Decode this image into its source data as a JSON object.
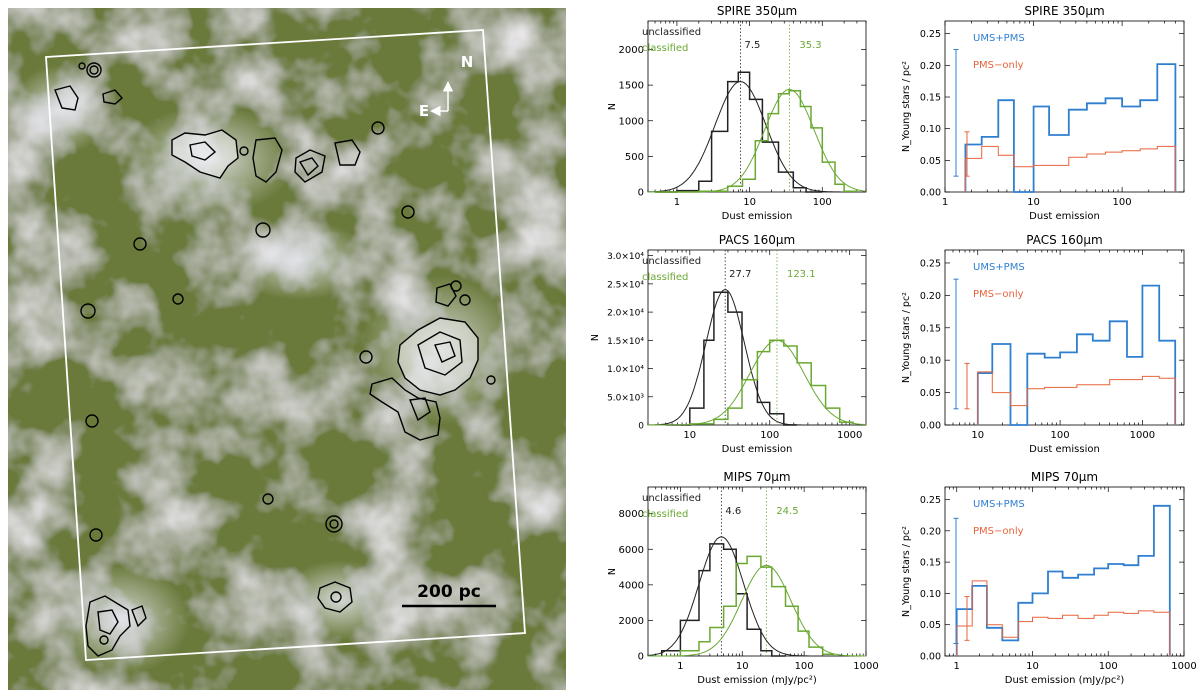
{
  "image_panel": {
    "compass_north": "N",
    "compass_east": "E",
    "scale_label": "200 pc"
  },
  "colors": {
    "unclassified": "#222222",
    "classified": "#6aa832",
    "ums_pms": "#2f7fd0",
    "pms_only": "#e8643c",
    "mosaic_base": "#6a7a3a",
    "overlay_box": "#ffffff",
    "contour": "#000000"
  },
  "chart_data": [
    {
      "type": "histogram",
      "xscale": "log",
      "title": "SPIRE 350μm",
      "xlabel": "Dust emission",
      "ylabel": "N",
      "xlim": [
        0.4,
        400
      ],
      "ylim": [
        0,
        2400
      ],
      "xticks": [
        1,
        10,
        100
      ],
      "xtick_labels": [
        "1",
        "10",
        "100"
      ],
      "yticks": [
        0,
        500,
        1000,
        1500,
        2000
      ],
      "ytick_labels": [
        "0",
        "500",
        "1000",
        "1500",
        "2000"
      ],
      "legend": [
        "unclassified",
        "classified"
      ],
      "series": [
        {
          "name": "unclassified",
          "median": 7.5,
          "median_label": "7.5",
          "edges": [
            0.5,
            1,
            2,
            3,
            5,
            7,
            10,
            15,
            25,
            40,
            60,
            100
          ],
          "values": [
            0,
            20,
            150,
            850,
            1550,
            1680,
            1300,
            700,
            280,
            60,
            0
          ],
          "fit": {
            "mu": 7.5,
            "sigma_dex": 0.35,
            "amp": 1550
          }
        },
        {
          "name": "classified",
          "median": 35.3,
          "median_label": "35.3",
          "edges": [
            0.5,
            2,
            5,
            8,
            12,
            18,
            25,
            35,
            50,
            70,
            100,
            150,
            200,
            300
          ],
          "values": [
            0,
            10,
            80,
            180,
            720,
            1100,
            1380,
            1420,
            1200,
            900,
            420,
            110,
            10
          ],
          "fit": {
            "mu": 35.3,
            "sigma_dex": 0.34,
            "amp": 1440
          }
        }
      ]
    },
    {
      "type": "histogram",
      "xscale": "log",
      "title": "PACS 160μm",
      "xlabel": "Dust emission",
      "ylabel": "N",
      "xlim": [
        3,
        1600
      ],
      "ylim": [
        0,
        31000
      ],
      "xticks": [
        10,
        100,
        1000
      ],
      "xtick_labels": [
        "10",
        "100",
        "1000"
      ],
      "yticks": [
        0,
        5000,
        10000,
        15000,
        20000,
        25000,
        30000
      ],
      "ytick_labels": [
        "0",
        "5.0×10³",
        "1.0×10⁴",
        "1.5×10⁴",
        "2.0×10⁴",
        "2.5×10⁴",
        "3.0×10⁴"
      ],
      "legend": [
        "unclassified",
        "classified"
      ],
      "series": [
        {
          "name": "unclassified",
          "median": 27.7,
          "median_label": "27.7",
          "edges": [
            5,
            10,
            15,
            20,
            30,
            45,
            70,
            100,
            150,
            220
          ],
          "values": [
            0,
            3000,
            15000,
            23500,
            20000,
            8000,
            4000,
            2000,
            0
          ],
          "fit": {
            "mu": 27.7,
            "sigma_dex": 0.24,
            "amp": 24000
          }
        },
        {
          "name": "classified",
          "median": 123.1,
          "median_label": "123.1",
          "edges": [
            10,
            20,
            30,
            45,
            70,
            100,
            150,
            220,
            330,
            500,
            750,
            1100
          ],
          "values": [
            200,
            1000,
            3000,
            8000,
            13000,
            15000,
            14000,
            11000,
            7000,
            3000,
            500
          ],
          "fit": {
            "mu": 123.1,
            "sigma_dex": 0.34,
            "amp": 15000
          }
        }
      ]
    },
    {
      "type": "histogram",
      "xscale": "log",
      "title": "MIPS 70μm",
      "xlabel": "Dust emission (mJy/pc²)",
      "ylabel": "N",
      "xlim": [
        0.3,
        1000
      ],
      "ylim": [
        0,
        9500
      ],
      "xticks": [
        1,
        10,
        100,
        1000
      ],
      "xtick_labels": [
        "1",
        "10",
        "100",
        "1000"
      ],
      "yticks": [
        0,
        2000,
        4000,
        6000,
        8000
      ],
      "ytick_labels": [
        "0",
        "2000",
        "4000",
        "6000",
        "8000"
      ],
      "legend": [
        "unclassified",
        "classified"
      ],
      "series": [
        {
          "name": "unclassified",
          "median": 4.6,
          "median_label": "4.6",
          "edges": [
            0.5,
            1,
            2,
            3,
            5,
            8,
            12,
            20,
            30,
            50
          ],
          "values": [
            300,
            2000,
            4800,
            6300,
            6000,
            3500,
            1500,
            300,
            0
          ],
          "fit": {
            "mu": 4.6,
            "sigma_dex": 0.36,
            "amp": 6700
          }
        },
        {
          "name": "classified",
          "median": 24.5,
          "median_label": "24.5",
          "edges": [
            1,
            2,
            3,
            5,
            8,
            12,
            20,
            30,
            50,
            80,
            120,
            200,
            300
          ],
          "values": [
            300,
            800,
            1600,
            2800,
            5200,
            5600,
            5000,
            3900,
            2800,
            1400,
            500,
            100
          ],
          "fit": {
            "mu": 24.5,
            "sigma_dex": 0.4,
            "amp": 5100
          }
        }
      ]
    },
    {
      "type": "histogram",
      "xscale": "log",
      "title": "SPIRE 350μm",
      "xlabel": "Dust emission",
      "ylabel": "N_Young stars / pc²",
      "xlim": [
        1,
        500
      ],
      "ylim": [
        0,
        0.27
      ],
      "xticks": [
        1,
        10,
        100
      ],
      "xtick_labels": [
        "1",
        "10",
        "100"
      ],
      "yticks": [
        0,
        0.05,
        0.1,
        0.15,
        0.2,
        0.25
      ],
      "ytick_labels": [
        "0.00",
        "0.05",
        "0.10",
        "0.15",
        "0.20",
        "0.25"
      ],
      "legend": [
        "UMS+PMS",
        "PMS−only"
      ],
      "errorbars": [
        {
          "center": 0.125,
          "half": 0.1
        },
        {
          "center": 0.06,
          "half": 0.035
        }
      ],
      "series": [
        {
          "name": "UMS+PMS",
          "edges": [
            1.7,
            2.6,
            4,
            6,
            10,
            15,
            25,
            40,
            65,
            100,
            160,
            250,
            400
          ],
          "values": [
            0.075,
            0.087,
            0.145,
            0,
            0.135,
            0.09,
            0.13,
            0.14,
            0.148,
            0.135,
            0.145,
            0.202
          ]
        },
        {
          "name": "PMS−only",
          "edges": [
            1.7,
            2.6,
            4,
            6,
            10,
            15,
            25,
            40,
            65,
            100,
            160,
            250,
            400
          ],
          "values": [
            0.053,
            0.072,
            0.058,
            0.04,
            0.042,
            0.042,
            0.055,
            0.06,
            0.063,
            0.065,
            0.068,
            0.072
          ]
        }
      ]
    },
    {
      "type": "histogram",
      "xscale": "log",
      "title": "PACS 160μm",
      "xlabel": "Dust emission",
      "ylabel": "N_Young stars / pc²",
      "xlim": [
        4,
        3200
      ],
      "ylim": [
        0,
        0.27
      ],
      "xticks": [
        10,
        100,
        1000
      ],
      "xtick_labels": [
        "10",
        "100",
        "1000"
      ],
      "yticks": [
        0,
        0.05,
        0.1,
        0.15,
        0.2,
        0.25
      ],
      "ytick_labels": [
        "0.00",
        "0.05",
        "0.10",
        "0.15",
        "0.20",
        "0.25"
      ],
      "legend": [
        "UMS+PMS",
        "PMS−only"
      ],
      "errorbars": [
        {
          "center": 0.125,
          "half": 0.1
        },
        {
          "center": 0.06,
          "half": 0.035
        }
      ],
      "series": [
        {
          "name": "UMS+PMS",
          "edges": [
            10,
            15,
            25,
            40,
            65,
            100,
            160,
            250,
            400,
            650,
            1000,
            1600,
            2500
          ],
          "values": [
            0.08,
            0.125,
            0,
            0.11,
            0.104,
            0.112,
            0.14,
            0.13,
            0.16,
            0.105,
            0.215,
            0.13
          ]
        },
        {
          "name": "PMS−only",
          "edges": [
            10,
            15,
            25,
            40,
            65,
            100,
            160,
            250,
            400,
            650,
            1000,
            1600,
            2500
          ],
          "values": [
            0.082,
            0.05,
            0.03,
            0.056,
            0.058,
            0.058,
            0.062,
            0.062,
            0.07,
            0.07,
            0.075,
            0.072
          ]
        }
      ]
    },
    {
      "type": "histogram",
      "xscale": "log",
      "title": "MIPS 70μm",
      "xlabel": "Dust emission (mJy/pc²)",
      "ylabel": "N_Young stars / pc²",
      "xlim": [
        0.7,
        1000
      ],
      "ylim": [
        0,
        0.27
      ],
      "xticks": [
        1,
        10,
        100,
        1000
      ],
      "xtick_labels": [
        "1",
        "10",
        "100",
        "1000"
      ],
      "yticks": [
        0,
        0.05,
        0.1,
        0.15,
        0.2,
        0.25
      ],
      "ytick_labels": [
        "0.00",
        "0.05",
        "0.10",
        "0.15",
        "0.20",
        "0.25"
      ],
      "legend": [
        "UMS+PMS",
        "PMS−only"
      ],
      "errorbars": [
        {
          "center": 0.12,
          "half": 0.1
        },
        {
          "center": 0.06,
          "half": 0.035
        }
      ],
      "series": [
        {
          "name": "UMS+PMS",
          "edges": [
            1,
            1.6,
            2.5,
            4,
            6.5,
            10,
            16,
            25,
            40,
            65,
            100,
            160,
            250,
            400,
            650
          ],
          "values": [
            0.075,
            0.112,
            0.045,
            0.025,
            0.085,
            0.1,
            0.135,
            0.125,
            0.13,
            0.14,
            0.147,
            0.145,
            0.16,
            0.24
          ]
        },
        {
          "name": "PMS−only",
          "edges": [
            1,
            1.6,
            2.5,
            4,
            6.5,
            10,
            16,
            25,
            40,
            65,
            100,
            160,
            250,
            400,
            650
          ],
          "values": [
            0.048,
            0.12,
            0.05,
            0.03,
            0.055,
            0.062,
            0.06,
            0.065,
            0.06,
            0.065,
            0.07,
            0.068,
            0.072,
            0.07
          ]
        }
      ]
    }
  ]
}
